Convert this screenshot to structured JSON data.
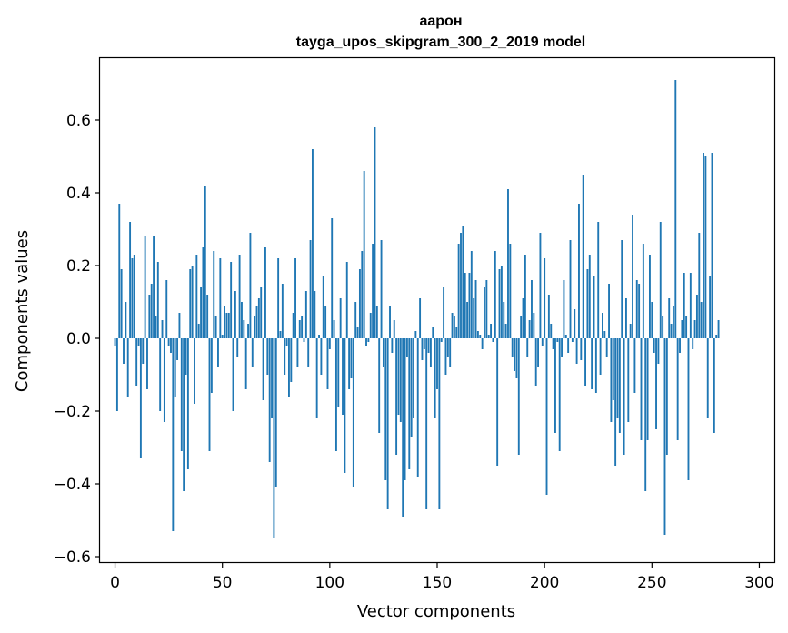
{
  "chart_data": {
    "type": "bar",
    "title": "аарон",
    "subtitle": "tayga_upos_skipgram_300_2_2019 model",
    "xlabel": "Vector components",
    "ylabel": "Components values",
    "xlim": [
      -7,
      307
    ],
    "ylim": [
      -0.615,
      0.77
    ],
    "xticks": [
      0,
      50,
      100,
      150,
      200,
      250,
      300
    ],
    "yticks": [
      -0.6,
      -0.4,
      -0.2,
      0.0,
      0.2,
      0.4,
      0.6
    ],
    "ytick_labels": [
      "−0.6",
      "−0.4",
      "−0.2",
      "0.0",
      "0.2",
      "0.4",
      "0.6"
    ],
    "bar_color": "#1f77b4",
    "values": [
      -0.02,
      -0.2,
      0.37,
      0.19,
      -0.07,
      0.1,
      -0.16,
      0.32,
      0.22,
      0.23,
      -0.13,
      -0.02,
      -0.33,
      -0.07,
      0.28,
      -0.14,
      0.12,
      0.15,
      0.28,
      0.06,
      0.21,
      -0.2,
      0.05,
      -0.23,
      0.16,
      -0.02,
      -0.04,
      -0.53,
      -0.16,
      -0.06,
      0.07,
      -0.31,
      -0.42,
      -0.1,
      -0.36,
      0.19,
      0.2,
      -0.18,
      0.23,
      0.04,
      0.14,
      0.25,
      0.42,
      0.12,
      -0.31,
      -0.15,
      0.24,
      0.06,
      -0.08,
      0.22,
      0.01,
      0.09,
      0.07,
      0.07,
      0.21,
      -0.2,
      0.13,
      -0.05,
      0.23,
      0.1,
      0.05,
      -0.14,
      0.04,
      0.29,
      -0.08,
      0.06,
      0.09,
      0.11,
      0.14,
      -0.17,
      0.25,
      -0.1,
      -0.34,
      -0.22,
      -0.55,
      -0.41,
      0.22,
      0.02,
      0.15,
      -0.1,
      -0.02,
      -0.16,
      -0.12,
      0.07,
      0.22,
      -0.08,
      0.05,
      0.06,
      -0.01,
      0.13,
      -0.08,
      0.27,
      0.52,
      0.13,
      -0.22,
      0.01,
      -0.1,
      0.17,
      0.09,
      -0.14,
      -0.03,
      0.33,
      0.05,
      -0.31,
      -0.19,
      0.11,
      -0.21,
      -0.37,
      0.21,
      -0.14,
      -0.11,
      -0.41,
      0.1,
      0.03,
      0.19,
      0.24,
      0.46,
      -0.02,
      -0.01,
      0.07,
      0.26,
      0.58,
      0.09,
      -0.26,
      0.27,
      -0.08,
      -0.39,
      -0.47,
      0.09,
      -0.04,
      0.05,
      -0.32,
      -0.21,
      -0.23,
      -0.49,
      -0.39,
      -0.05,
      -0.36,
      -0.27,
      -0.22,
      0.02,
      -0.38,
      0.11,
      -0.06,
      -0.03,
      -0.47,
      -0.04,
      -0.08,
      0.03,
      -0.22,
      -0.14,
      -0.47,
      -0.01,
      0.14,
      -0.1,
      -0.05,
      -0.08,
      0.07,
      0.06,
      0.03,
      0.26,
      0.29,
      0.31,
      0.18,
      0.1,
      0.18,
      0.24,
      0.11,
      0.16,
      0.02,
      0.01,
      -0.03,
      0.14,
      0.16,
      0.01,
      0.04,
      -0.01,
      0.24,
      -0.35,
      0.19,
      0.2,
      0.1,
      0.04,
      0.41,
      0.26,
      -0.05,
      -0.09,
      -0.11,
      -0.32,
      0.06,
      0.11,
      0.23,
      -0.05,
      0.05,
      0.16,
      0.07,
      -0.13,
      -0.08,
      0.29,
      -0.02,
      0.22,
      -0.43,
      0.12,
      0.04,
      -0.03,
      -0.26,
      -0.01,
      -0.31,
      -0.05,
      0.16,
      0.01,
      -0.04,
      0.27,
      -0.01,
      0.08,
      -0.07,
      0.37,
      -0.06,
      0.45,
      -0.13,
      0.19,
      0.23,
      -0.14,
      0.17,
      -0.15,
      0.32,
      -0.1,
      0.07,
      0.02,
      -0.05,
      0.15,
      -0.23,
      -0.17,
      -0.35,
      -0.22,
      -0.26,
      0.27,
      -0.32,
      0.11,
      -0.23,
      0.04,
      0.34,
      -0.15,
      0.16,
      0.15,
      -0.28,
      0.26,
      -0.42,
      -0.28,
      0.23,
      0.1,
      -0.04,
      -0.25,
      -0.07,
      0.32,
      0.06,
      -0.54,
      -0.32,
      0.11,
      0.04,
      0.09,
      0.71,
      -0.28,
      -0.04,
      0.05,
      0.18,
      0.06,
      -0.39,
      0.18,
      -0.03,
      0.05,
      0.12,
      0.29,
      0.1,
      0.51,
      0.5,
      -0.22,
      0.17,
      0.51,
      -0.26,
      0.01,
      0.05
    ]
  }
}
